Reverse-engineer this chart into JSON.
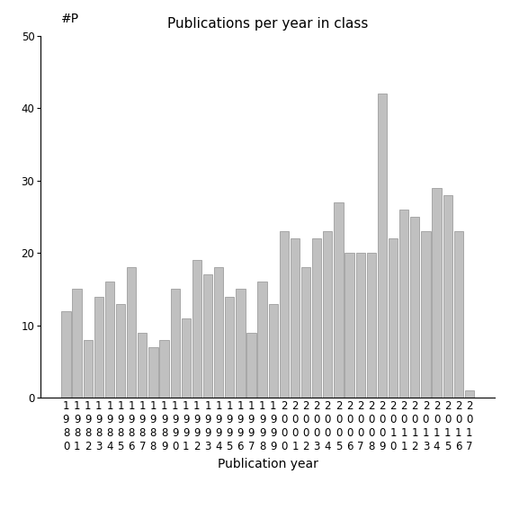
{
  "title": "Publications per year in class",
  "xlabel": "Publication year",
  "ylabel": "#P",
  "ylim": [
    0,
    50
  ],
  "yticks": [
    0,
    10,
    20,
    30,
    40,
    50
  ],
  "categories": [
    "1980",
    "1981",
    "1982",
    "1983",
    "1984",
    "1985",
    "1986",
    "1987",
    "1988",
    "1989",
    "1990",
    "1991",
    "1992",
    "1993",
    "1994",
    "1995",
    "1996",
    "1997",
    "1998",
    "1999",
    "2000",
    "2001",
    "2002",
    "2003",
    "2004",
    "2005",
    "2006",
    "2007",
    "2008",
    "2009",
    "2010",
    "2011",
    "2012",
    "2013",
    "2014",
    "2015",
    "2016",
    "2017"
  ],
  "values": [
    12,
    15,
    8,
    14,
    16,
    13,
    18,
    9,
    7,
    8,
    15,
    11,
    19,
    17,
    18,
    14,
    15,
    9,
    16,
    13,
    23,
    22,
    18,
    22,
    23,
    27,
    20,
    20,
    20,
    42,
    22,
    26,
    25,
    23,
    29,
    28,
    23,
    1
  ],
  "bar_color": "#c0c0c0",
  "bar_edge_color": "#909090",
  "title_fontsize": 11,
  "axis_label_fontsize": 10,
  "tick_fontsize": 8.5
}
